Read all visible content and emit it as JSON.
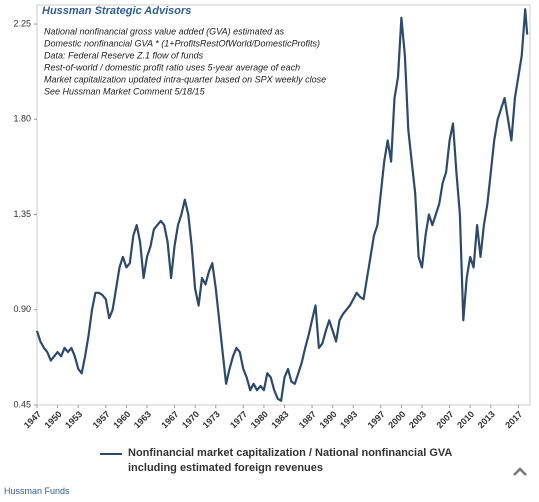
{
  "chart_data": {
    "type": "line",
    "title": "Hussman Strategic Advisors",
    "annotations": [
      "National nonfinancial gross value added (GVA) estimated as",
      "Domestic nonfinancial GVA  * (1+ProfitsRestOfWorld/DomesticProfits)",
      "Data: Federal Reserve Z.1 flow of funds",
      "Rest-of-world / domestic profit ratio uses 5-year average of each",
      "Market capitalization updated intra-quarter based on SPX weekly close",
      "See Hussman Market Comment 5/18/15"
    ],
    "footer": "Hussman Funds",
    "x": [
      1947,
      1947.5,
      1948,
      1948.5,
      1949,
      1949.5,
      1950,
      1950.5,
      1951,
      1951.5,
      1952,
      1952.5,
      1953,
      1953.5,
      1954,
      1954.5,
      1955,
      1955.5,
      1956,
      1956.5,
      1957,
      1957.5,
      1958,
      1958.5,
      1959,
      1959.5,
      1960,
      1960.5,
      1961,
      1961.5,
      1962,
      1962.5,
      1963,
      1963.5,
      1964,
      1964.5,
      1965,
      1965.5,
      1966,
      1966.5,
      1967,
      1967.5,
      1968,
      1968.5,
      1969,
      1969.5,
      1970,
      1970.5,
      1971,
      1971.5,
      1972,
      1972.5,
      1973,
      1973.5,
      1974,
      1974.5,
      1975,
      1975.5,
      1976,
      1976.5,
      1977,
      1977.5,
      1978,
      1978.5,
      1979,
      1979.5,
      1980,
      1980.5,
      1981,
      1981.5,
      1982,
      1982.5,
      1983,
      1983.5,
      1984,
      1984.5,
      1985,
      1985.5,
      1986,
      1986.5,
      1987,
      1987.5,
      1988,
      1988.5,
      1989,
      1989.5,
      1990,
      1990.5,
      1991,
      1991.5,
      1992,
      1992.5,
      1993,
      1993.5,
      1994,
      1994.5,
      1995,
      1995.5,
      1996,
      1996.5,
      1997,
      1997.5,
      1998,
      1998.5,
      1999,
      1999.5,
      2000,
      2000.5,
      2001,
      2001.5,
      2002,
      2002.5,
      2003,
      2003.5,
      2004,
      2004.5,
      2005,
      2005.5,
      2006,
      2006.5,
      2007,
      2007.5,
      2008,
      2008.5,
      2009,
      2009.5,
      2010,
      2010.5,
      2011,
      2011.5,
      2012,
      2012.5,
      2013,
      2013.5,
      2014,
      2014.5,
      2015,
      2015.5,
      2016,
      2016.5,
      2017,
      2017.5,
      2018,
      2018.3
    ],
    "series": [
      {
        "name": "Nonfinancial market capitalization / National nonfinancial GVA including estimated foreign revenues",
        "color": "#2e4a6b",
        "values": [
          0.8,
          0.75,
          0.72,
          0.7,
          0.66,
          0.68,
          0.7,
          0.68,
          0.72,
          0.7,
          0.72,
          0.68,
          0.62,
          0.6,
          0.68,
          0.78,
          0.9,
          0.98,
          0.98,
          0.97,
          0.95,
          0.86,
          0.9,
          1.0,
          1.1,
          1.15,
          1.1,
          1.12,
          1.25,
          1.3,
          1.22,
          1.05,
          1.15,
          1.2,
          1.28,
          1.3,
          1.32,
          1.3,
          1.22,
          1.05,
          1.2,
          1.3,
          1.35,
          1.42,
          1.35,
          1.2,
          1.0,
          0.92,
          1.05,
          1.02,
          1.08,
          1.12,
          1.0,
          0.85,
          0.7,
          0.55,
          0.62,
          0.68,
          0.72,
          0.7,
          0.62,
          0.58,
          0.52,
          0.55,
          0.52,
          0.54,
          0.52,
          0.6,
          0.58,
          0.52,
          0.48,
          0.47,
          0.58,
          0.62,
          0.56,
          0.55,
          0.6,
          0.65,
          0.72,
          0.78,
          0.85,
          0.92,
          0.72,
          0.74,
          0.8,
          0.85,
          0.8,
          0.75,
          0.85,
          0.88,
          0.9,
          0.92,
          0.95,
          0.98,
          0.96,
          0.95,
          1.05,
          1.15,
          1.25,
          1.3,
          1.45,
          1.6,
          1.7,
          1.6,
          1.9,
          2.0,
          2.28,
          2.1,
          1.75,
          1.6,
          1.45,
          1.15,
          1.1,
          1.25,
          1.35,
          1.3,
          1.35,
          1.4,
          1.5,
          1.55,
          1.7,
          1.78,
          1.55,
          1.35,
          0.85,
          1.05,
          1.15,
          1.1,
          1.3,
          1.15,
          1.3,
          1.4,
          1.55,
          1.7,
          1.8,
          1.85,
          1.9,
          1.8,
          1.7,
          1.9,
          2.0,
          2.1,
          2.32,
          2.2
        ]
      }
    ],
    "xlim": [
      1947,
      2018.7
    ],
    "xticks": [
      1947,
      1950,
      1953,
      1957,
      1960,
      1963,
      1967,
      1970,
      1973,
      1977,
      1980,
      1983,
      1987,
      1990,
      1993,
      1997,
      2000,
      2003,
      2007,
      2010,
      2013,
      2017
    ],
    "ylim": [
      0.45,
      2.34
    ],
    "yticks": [
      0.45,
      {
        "value": 0.9,
        "label": "0.90"
      },
      1.35,
      {
        "value": 1.8,
        "label": "1.80"
      },
      2.25
    ],
    "grid": false
  }
}
